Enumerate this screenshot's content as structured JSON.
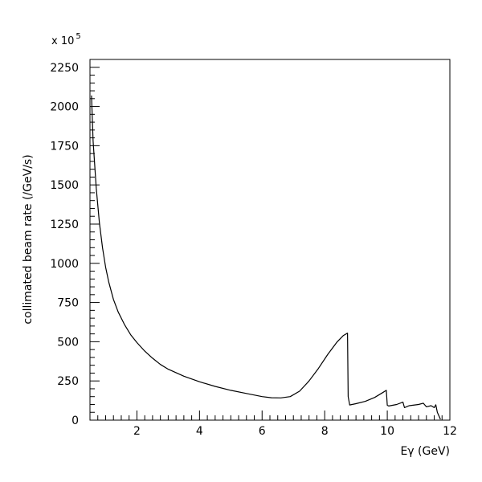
{
  "chart_data": {
    "type": "line",
    "xlabel": "Eγ (GeV)",
    "ylabel": "collimated beam rate (/GeV/s)",
    "y_multiplier": {
      "base": "x 10",
      "exponent": "5"
    },
    "xlim": [
      0.5,
      12
    ],
    "ylim": [
      0,
      2300
    ],
    "x_ticks": [
      2,
      4,
      6,
      8,
      10,
      12
    ],
    "y_ticks": [
      0,
      250,
      500,
      750,
      1000,
      1250,
      1500,
      1750,
      2000,
      2250
    ],
    "grid": false,
    "legend": "none",
    "series": [
      {
        "x": [
          0.55,
          0.6,
          0.7,
          0.8,
          0.9,
          1.0,
          1.1,
          1.25,
          1.4,
          1.6,
          1.8,
          2.0,
          2.25,
          2.5,
          2.75,
          3.0,
          3.5,
          4.0,
          4.5,
          5.0,
          5.5,
          6.0,
          6.3,
          6.6,
          6.9,
          7.2,
          7.5,
          7.8,
          8.1,
          8.4,
          8.6,
          8.73,
          8.75,
          8.8,
          9.0,
          9.3,
          9.6,
          9.85,
          9.97,
          10.0,
          10.05,
          10.3,
          10.5,
          10.55,
          10.7,
          11.0,
          11.15,
          11.25,
          11.4,
          11.5,
          11.55,
          11.6,
          11.7
        ],
        "y": [
          2070,
          1780,
          1480,
          1260,
          1100,
          975,
          880,
          770,
          690,
          610,
          545,
          495,
          440,
          395,
          355,
          325,
          280,
          245,
          215,
          190,
          170,
          150,
          143,
          142,
          150,
          185,
          250,
          330,
          420,
          500,
          540,
          555,
          150,
          97,
          105,
          120,
          145,
          175,
          190,
          95,
          90,
          100,
          115,
          80,
          92,
          100,
          108,
          85,
          92,
          80,
          98,
          50,
          5
        ]
      }
    ]
  }
}
